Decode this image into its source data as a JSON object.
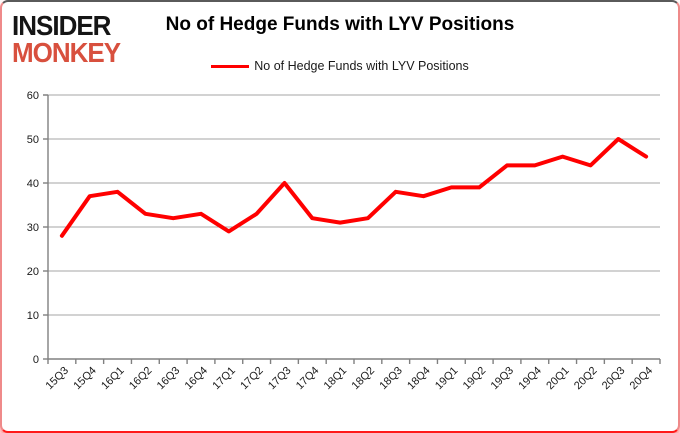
{
  "brand": {
    "line1": "INSIDER",
    "line2": "MONKEY",
    "monkey_color": "#d8503e"
  },
  "header": {
    "title": "No of Hedge Funds with LYV Positions"
  },
  "legend": {
    "label": "No of Hedge Funds with LYV Positions",
    "line_color": "#ff0000"
  },
  "chart_data": {
    "type": "line",
    "title": "No of Hedge Funds with LYV Positions",
    "categories": [
      "15Q3",
      "15Q4",
      "16Q1",
      "16Q2",
      "16Q3",
      "16Q4",
      "17Q1",
      "17Q2",
      "17Q3",
      "17Q4",
      "18Q1",
      "18Q2",
      "18Q3",
      "18Q4",
      "19Q1",
      "19Q2",
      "19Q3",
      "19Q4",
      "20Q1",
      "20Q2",
      "20Q3",
      "20Q4"
    ],
    "values": [
      28,
      37,
      38,
      33,
      32,
      33,
      29,
      33,
      40,
      32,
      31,
      32,
      38,
      37,
      39,
      39,
      44,
      44,
      46,
      44,
      50,
      46
    ],
    "xlabel": "",
    "ylabel": "",
    "ylim": [
      0,
      60
    ],
    "yticks": [
      0,
      10,
      20,
      30,
      40,
      50,
      60
    ],
    "grid": true,
    "legend_position": "top-center",
    "line_color": "#ff0000"
  },
  "colors": {
    "line": "#ff0000",
    "gridline": "#a6a6a6",
    "axis": "#808080",
    "border_red": "#ff1a1a",
    "logo_red": "#d8503e",
    "background": "#ffffff"
  }
}
